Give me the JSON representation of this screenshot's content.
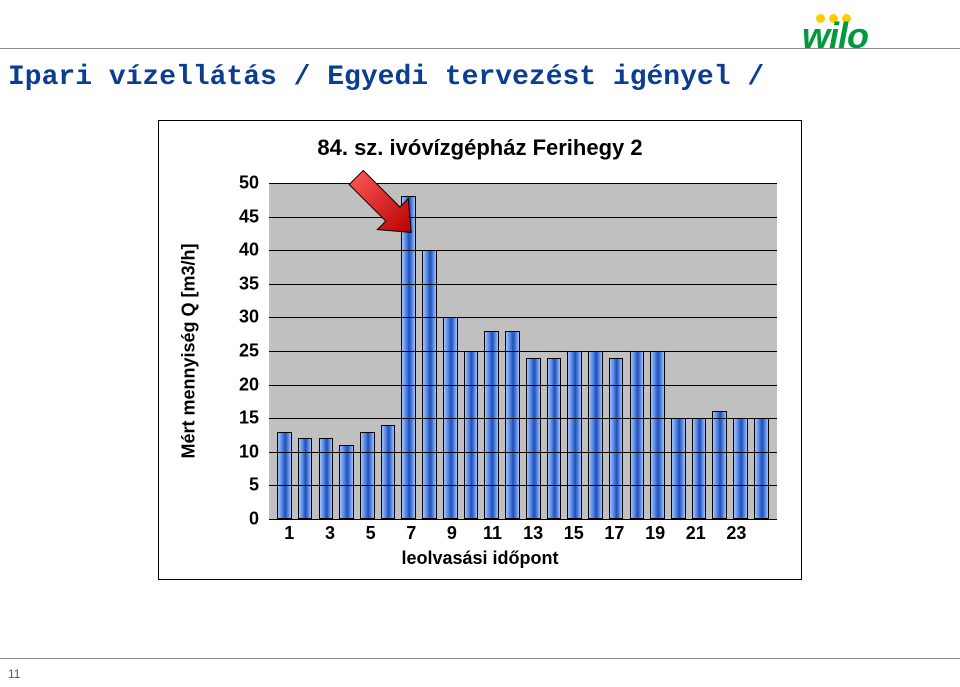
{
  "page": {
    "title": "Ipari vízellátás / Egyedi tervezést igényel /",
    "page_number": "11"
  },
  "logo": {
    "text": "wilo",
    "text_color": "#009a3d",
    "dot_color": "#ffcc00"
  },
  "chart": {
    "type": "bar",
    "title": "84. sz. ivóvízgépház Ferihegy 2",
    "title_fontsize": 22,
    "y_axis_label": "Mért mennyiség Q [m3/h]",
    "x_axis_label": "leolvasási időpont",
    "label_fontsize": 18,
    "tick_fontsize": 18,
    "ylim": [
      0,
      50
    ],
    "ytick_step": 5,
    "y_ticks": [
      0,
      5,
      10,
      15,
      20,
      25,
      30,
      35,
      40,
      45,
      50
    ],
    "x_categories": [
      1,
      2,
      3,
      4,
      5,
      6,
      7,
      8,
      9,
      10,
      11,
      12,
      13,
      14,
      15,
      16,
      17,
      18,
      19,
      20,
      21,
      22,
      23,
      24
    ],
    "x_tick_labels": [
      1,
      3,
      5,
      7,
      9,
      11,
      13,
      15,
      17,
      19,
      21,
      23
    ],
    "values": [
      13,
      12,
      12,
      11,
      13,
      14,
      48,
      40,
      30,
      25,
      28,
      28,
      24,
      24,
      25,
      25,
      24,
      25,
      25,
      15,
      15,
      16,
      15,
      15
    ],
    "bar_fill_gradient": [
      "#a3c3f7",
      "#4d7ee0",
      "#1d4fb5",
      "#4d7ee0",
      "#a3c3f7"
    ],
    "bar_border_color": "#000000",
    "bar_width_ratio": 0.7,
    "plot_background": "#c0c0c0",
    "grid_color": "#000000",
    "frame_border_color": "#000000",
    "arrow": {
      "target_category": 7,
      "fill": "#ff0000",
      "outline": "#000000",
      "body_fill_gradient": [
        "#ff5a5a",
        "#b90000"
      ]
    }
  }
}
